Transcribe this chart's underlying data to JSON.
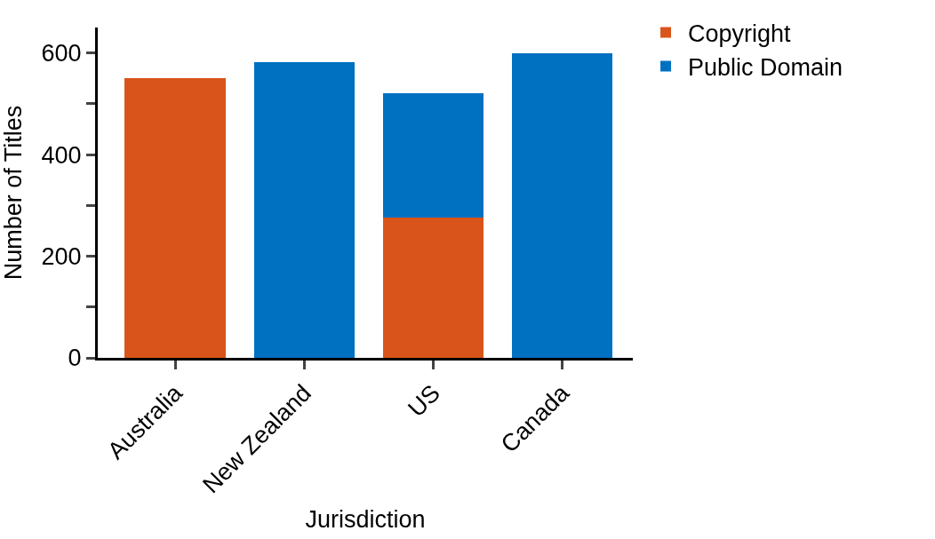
{
  "chart_data": {
    "type": "bar",
    "stacked": true,
    "xlabel": "Jurisdiction",
    "ylabel": "Number of Titles",
    "categories": [
      "Australia",
      "New Zealand",
      "US",
      "Canada"
    ],
    "series": [
      {
        "name": "Copyright",
        "color": "#d9541a",
        "values": [
          550,
          null,
          276,
          null
        ]
      },
      {
        "name": "Public Domain",
        "color": "#0070c0",
        "values": [
          null,
          582,
          245,
          600
        ]
      }
    ],
    "ylim": [
      0,
      650
    ],
    "yticks": [
      0,
      {
        "value": 100,
        "label": null
      },
      200,
      {
        "value": 300,
        "label": null
      },
      400,
      {
        "value": 500,
        "label": null
      },
      600
    ],
    "legend": "top right"
  }
}
